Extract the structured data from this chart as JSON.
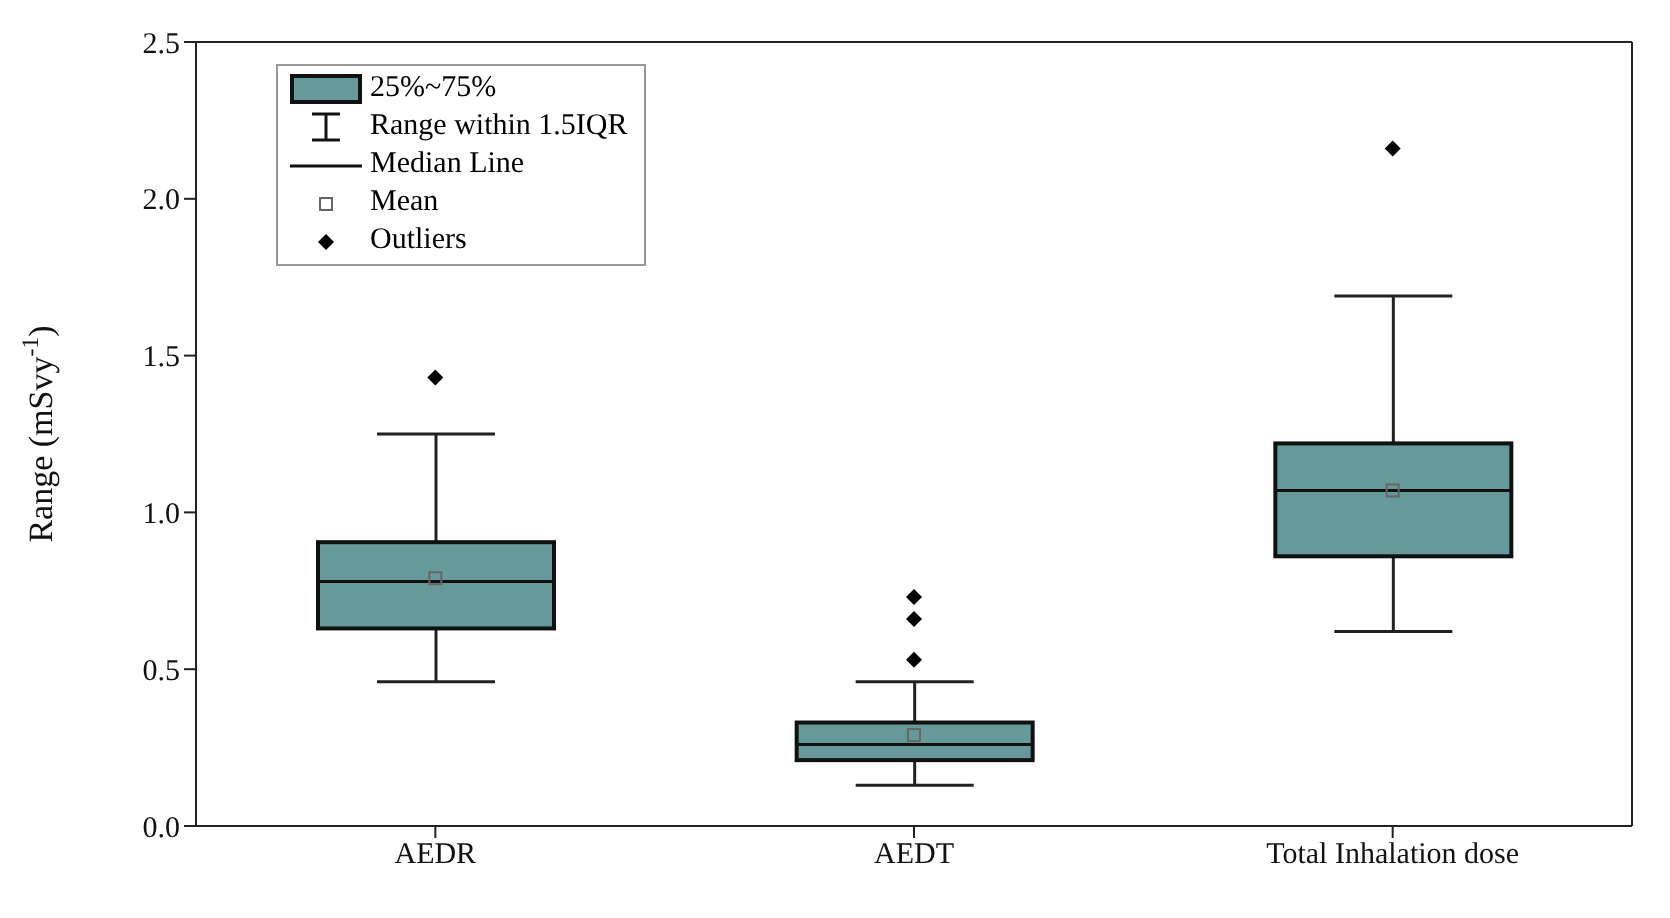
{
  "chart_data": {
    "type": "box",
    "ylabel": "Range (mSvy$^{-1}$)",
    "categories": [
      "AEDR",
      "AEDT",
      "Total Inhalation dose"
    ],
    "ylim": [
      0,
      2.5
    ],
    "yticks": [
      {
        "value": 0,
        "label": "0.0"
      },
      0.5,
      {
        "value": 1,
        "label": "1.0"
      },
      1.5,
      {
        "value": 2,
        "label": "2.0"
      },
      2.5
    ],
    "legend": "top left",
    "series": [
      {
        "name": "25%~75%",
        "color": "#669999",
        "boxes": [
          {
            "low": 0.46,
            "q1": 0.63,
            "median": 0.78,
            "q3": 0.905,
            "high": 1.25
          },
          {
            "low": 0.13,
            "q1": 0.21,
            "median": 0.26,
            "q3": 0.33,
            "high": 0.46
          },
          {
            "low": 0.62,
            "q1": 0.86,
            "median": 1.07,
            "q3": 1.22,
            "high": 1.69
          }
        ]
      },
      {
        "name": "Mean",
        "type": "scatter",
        "marker": "square",
        "color": "#666666",
        "x": [
          "AEDR",
          "AEDT",
          "Total Inhalation dose"
        ],
        "values": [
          0.79,
          0.29,
          1.07
        ]
      },
      {
        "name": "Outliers",
        "type": "scatter",
        "marker": "diamond",
        "color": "#000000",
        "x": [
          "AEDR",
          "AEDT",
          "AEDT",
          "AEDT",
          "Total Inhalation dose"
        ],
        "values": [
          1.43,
          0.73,
          0.66,
          0.53,
          2.16
        ]
      }
    ],
    "annotations": [
      "Range within 1.5IQR",
      "Median Line"
    ]
  }
}
